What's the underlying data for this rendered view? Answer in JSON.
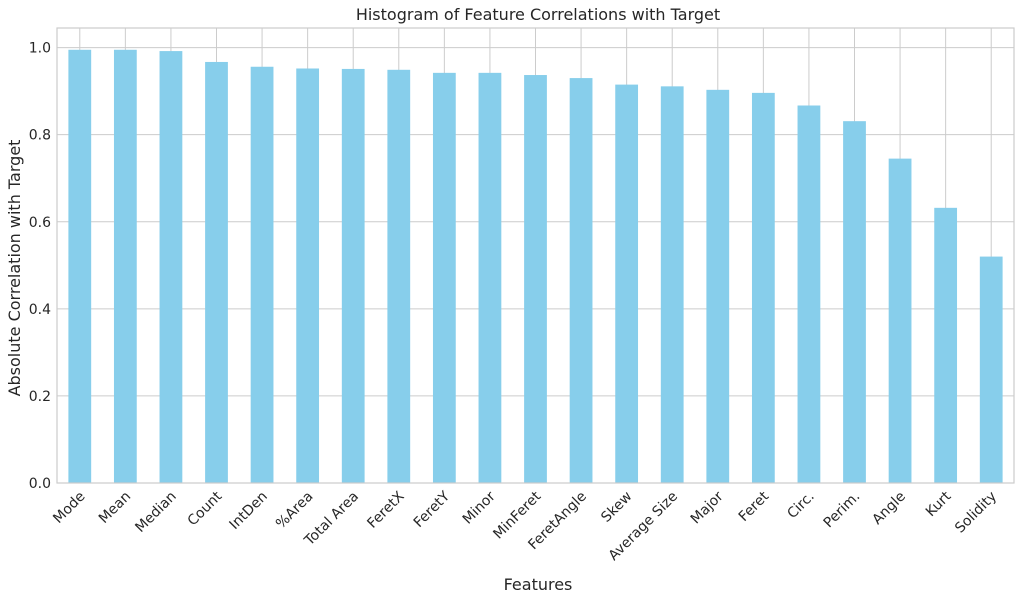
{
  "chart_data": {
    "type": "bar",
    "title": "Histogram of Feature Correlations with Target",
    "xlabel": "Features",
    "ylabel": "Absolute Correlation with Target",
    "categories": [
      "Mode",
      "Mean",
      "Median",
      "Count",
      "IntDen",
      "%Area",
      "Total Area",
      "FeretX",
      "FeretY",
      "Minor",
      "MinFeret",
      "FeretAngle",
      "Skew",
      "Average Size",
      "Major",
      "Feret",
      "Circ.",
      "Perim.",
      "Angle",
      "Kurt",
      "Solidity"
    ],
    "values": [
      0.995,
      0.995,
      0.992,
      0.967,
      0.956,
      0.952,
      0.951,
      0.949,
      0.942,
      0.942,
      0.937,
      0.93,
      0.915,
      0.911,
      0.903,
      0.896,
      0.867,
      0.831,
      0.745,
      0.632,
      0.52
    ],
    "yticks": [
      "0.0",
      "0.2",
      "0.4",
      "0.6",
      "0.8",
      "1.0"
    ],
    "ylim": [
      0,
      1.045
    ],
    "grid": true,
    "bar_color": "#87ceeb",
    "grid_color": "#cccccc",
    "axes_edge_color": "#cccccc"
  }
}
